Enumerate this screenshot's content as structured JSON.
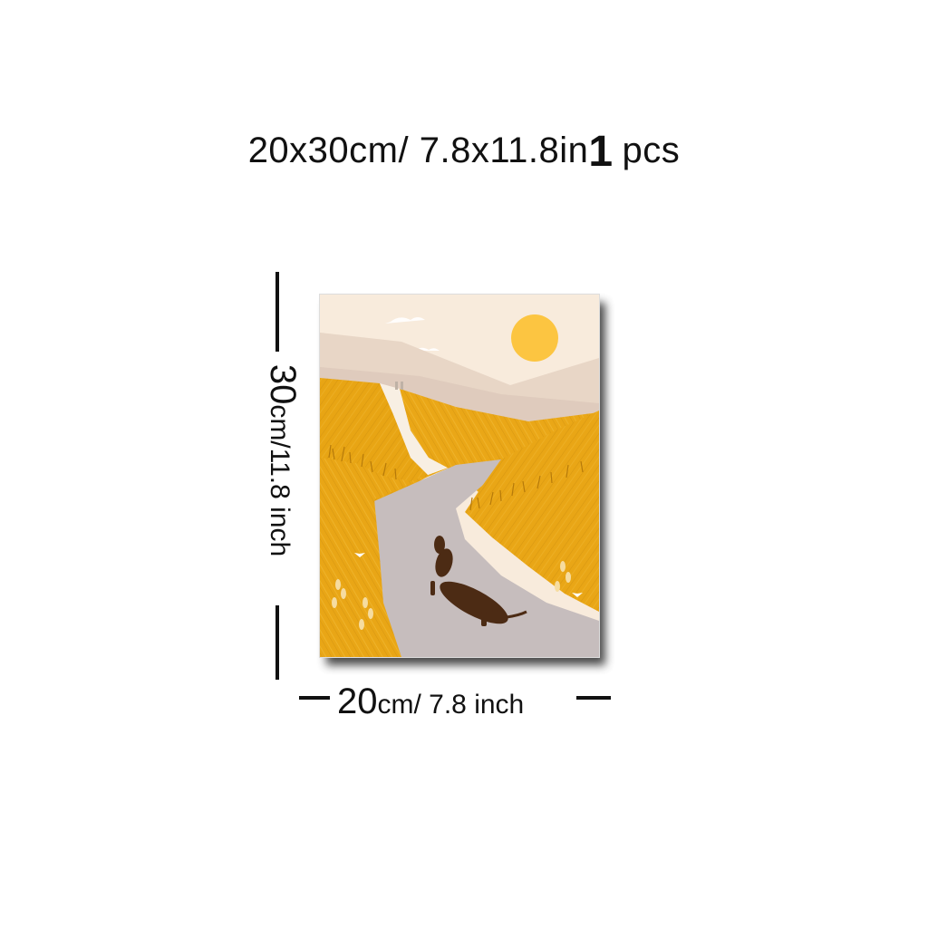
{
  "title": {
    "size_text": "20x30cm/ 7.8x11.8in",
    "quantity": "1",
    "quantity_unit": "pcs"
  },
  "height_label": {
    "value": "30",
    "unit_text": "cm/11.8 inch"
  },
  "width_label": {
    "value": "20",
    "unit_text": "cm/ 7.8 inch"
  },
  "artwork": {
    "subject": "dachshund walking along a path through golden fields under a sun",
    "colors": {
      "sky": "#f8ebdc",
      "sun": "#fcc541",
      "hills": "#e3cdbd",
      "field": "#e8a514",
      "path": "#c4bbbb",
      "dog": "#4c2b14"
    }
  }
}
